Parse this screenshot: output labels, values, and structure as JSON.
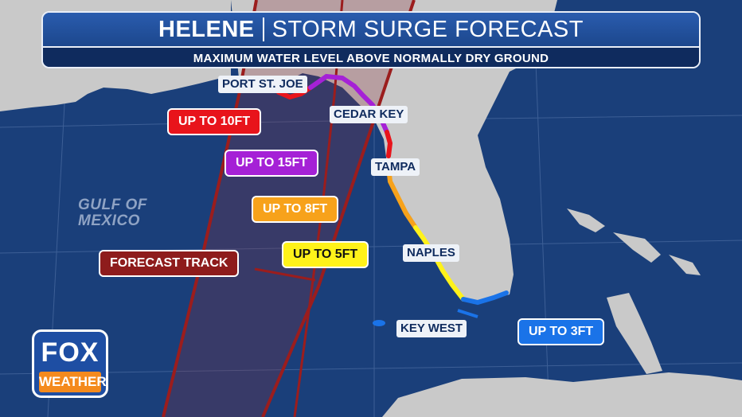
{
  "header": {
    "storm_name": "HELENE",
    "title": "STORM SURGE FORECAST",
    "subtitle": "MAXIMUM WATER LEVEL ABOVE NORMALLY DRY GROUND"
  },
  "surge_labels": {
    "up_to_10ft": "UP TO 10FT",
    "up_to_15ft": "UP TO 15FT",
    "up_to_8ft": "UP TO 8FT",
    "up_to_5ft": "UP TO 5FT",
    "up_to_3ft": "UP TO 3FT",
    "forecast_track": "FORECAST TRACK"
  },
  "cities": {
    "port_st_joe": "PORT ST. JOE",
    "cedar_key": "CEDAR KEY",
    "tampa": "TAMPA",
    "naples": "NAPLES",
    "key_west": "KEY WEST"
  },
  "water_body": {
    "line1": "GULF OF",
    "line2": "MEXICO"
  },
  "logo": {
    "brand": "FOX",
    "sub": "WEATHER"
  },
  "colors": {
    "ocean": "#1a3f7a",
    "land": "#c9c9c9",
    "track": "#9b1d1d",
    "surge_10ft": "#e8141b",
    "surge_15ft": "#a521d6",
    "surge_8ft": "#f7a21b",
    "surge_5ft": "#fff21a",
    "surge_3ft": "#1a73e8"
  }
}
